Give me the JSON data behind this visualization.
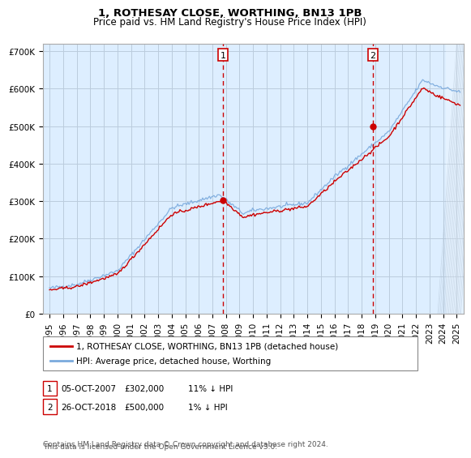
{
  "title": "1, ROTHESAY CLOSE, WORTHING, BN13 1PB",
  "subtitle": "Price paid vs. HM Land Registry's House Price Index (HPI)",
  "ylabel_ticks": [
    "£0",
    "£100K",
    "£200K",
    "£300K",
    "£400K",
    "£500K",
    "£600K",
    "£700K"
  ],
  "ytick_values": [
    0,
    100000,
    200000,
    300000,
    400000,
    500000,
    600000,
    700000
  ],
  "ylim": [
    0,
    720000
  ],
  "xlim_start": 1994.5,
  "xlim_end": 2025.5,
  "sale1_date": 2007.77,
  "sale1_price": 302000,
  "sale1_label": "1",
  "sale2_date": 2018.82,
  "sale2_price": 500000,
  "sale2_label": "2",
  "legend_line1": "1, ROTHESAY CLOSE, WORTHING, BN13 1PB (detached house)",
  "legend_line2": "HPI: Average price, detached house, Worthing",
  "footnote1": "Contains HM Land Registry data © Crown copyright and database right 2024.",
  "footnote2": "This data is licensed under the Open Government Licence v3.0.",
  "property_line_color": "#cc0000",
  "hpi_line_color": "#7aaadd",
  "sale_marker_color": "#cc0000",
  "vline_color": "#cc0000",
  "background_color": "#ddeeff",
  "grid_color": "#bbccdd",
  "title_fontsize": 9.5,
  "subtitle_fontsize": 8.5,
  "tick_fontsize": 7.5,
  "legend_fontsize": 7.5,
  "footnote_fontsize": 6.5,
  "annotation_fontsize": 7.5
}
